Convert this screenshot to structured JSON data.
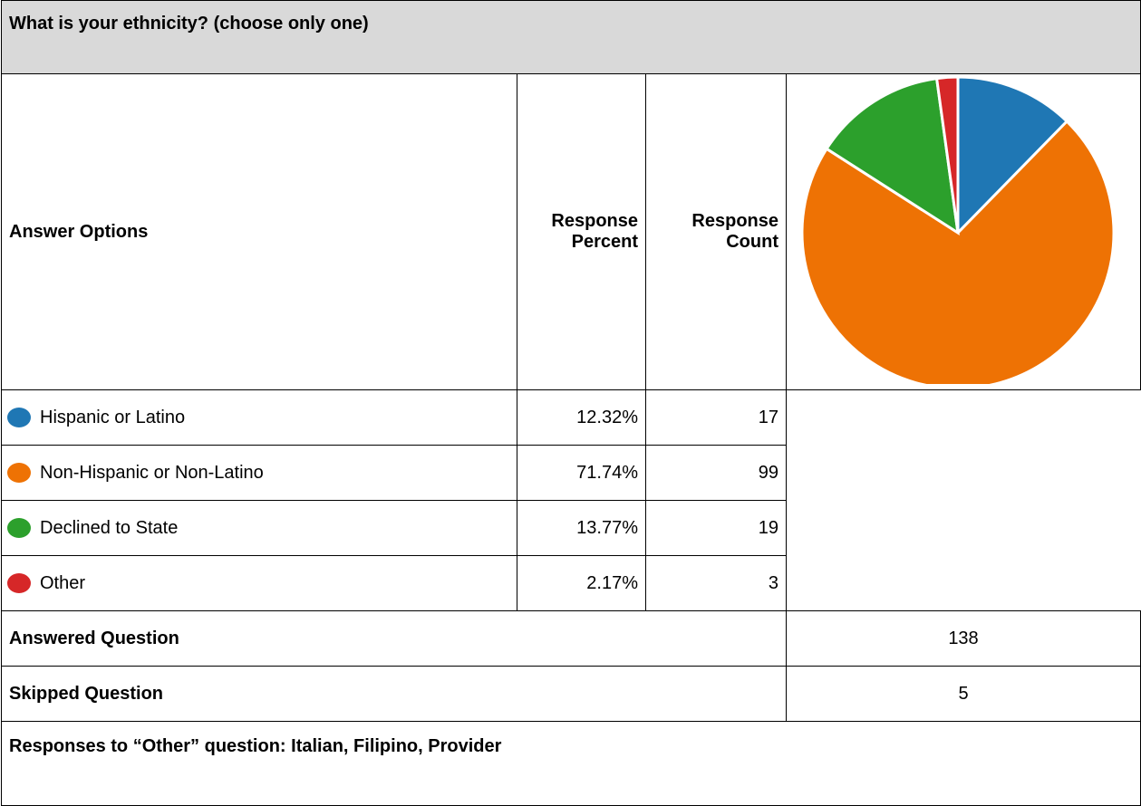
{
  "table": {
    "title": "What is your ethnicity? (choose only one)",
    "headers": [
      "Answer Options",
      "Response Percent",
      "Response Count"
    ],
    "rows": [
      {
        "label": "Hispanic or Latino",
        "percent": "12.32%",
        "count": 17,
        "color": "#1f77b4"
      },
      {
        "label": "Non-Hispanic or Non-Latino",
        "percent": "71.74%",
        "count": 99,
        "color": "#ee7204"
      },
      {
        "label": "Declined to State",
        "percent": "13.77%",
        "count": 19,
        "color": "#2ca02c"
      },
      {
        "label": "Other",
        "percent": "2.17%",
        "count": 3,
        "color": "#d62728"
      }
    ],
    "answered": {
      "label": "Answered Question",
      "value": 138
    },
    "skipped": {
      "label": "Skipped Question",
      "value": 5
    },
    "note": "Responses to “Other” question: Italian, Filipino, Provider"
  }
}
